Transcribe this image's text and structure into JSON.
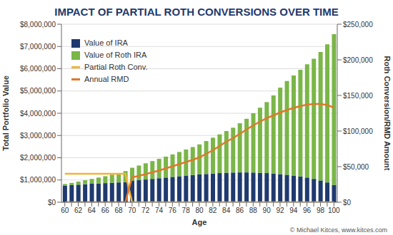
{
  "chart_data": {
    "type": "bar",
    "title": "IMPACT OF PARTIAL ROTH CONVERSIONS OVER TIME",
    "x_label": "Age",
    "y_label": "Total Portfolio Value",
    "y2_label": "Roth Conversion/RMD Amount",
    "annotations": [
      "© Michael Kitces, www.kitces.com"
    ],
    "stacked": true,
    "grid": true,
    "legend": "upper left",
    "categories": [
      "60",
      null,
      "62",
      null,
      "64",
      null,
      "66",
      null,
      "68",
      null,
      "70",
      null,
      "72",
      null,
      "74",
      null,
      "76",
      null,
      "78",
      null,
      "80",
      null,
      "82",
      null,
      "84",
      null,
      "86",
      null,
      "88",
      null,
      "90",
      null,
      "92",
      null,
      "94",
      null,
      "96",
      null,
      "98",
      null,
      "100"
    ],
    "ylim": [
      0,
      8000000
    ],
    "yticks": [
      {
        "value": 0,
        "label": "$0"
      },
      {
        "value": 1000000,
        "label": "$1,000,000"
      },
      {
        "value": 2000000,
        "label": "$2,000,000"
      },
      {
        "value": 3000000,
        "label": "$3,000,000"
      },
      {
        "value": 4000000,
        "label": "$4,000,000"
      },
      {
        "value": 5000000,
        "label": "$5,000,000"
      },
      {
        "value": 6000000,
        "label": "$6,000,000"
      },
      {
        "value": 7000000,
        "label": "$7,000,000"
      },
      {
        "value": 8000000,
        "label": "$8,000,000"
      }
    ],
    "y2lim": [
      0,
      250000
    ],
    "y2ticks": [
      {
        "value": 0,
        "label": "$0"
      },
      {
        "value": 50000,
        "label": "$50,000"
      },
      {
        "value": 100000,
        "label": "$100,000"
      },
      {
        "value": 150000,
        "label": "$150,000"
      },
      {
        "value": 200000,
        "label": "$200,000"
      },
      {
        "value": 250000,
        "label": "$250,000"
      }
    ],
    "series": [
      {
        "name": "Value of IRA",
        "type": "bar",
        "color": "#1f3a6e",
        "values": [
          750000,
          770000,
          790000,
          810000,
          830000,
          845000,
          860000,
          875000,
          890000,
          900000,
          960000,
          990000,
          1020000,
          1050000,
          1080000,
          1110000,
          1140000,
          1170000,
          1200000,
          1225000,
          1250000,
          1270000,
          1290000,
          1310000,
          1325000,
          1335000,
          1340000,
          1340000,
          1335000,
          1325000,
          1310000,
          1290000,
          1265000,
          1235000,
          1200000,
          1160000,
          1110000,
          1050000,
          980000,
          890000,
          780000
        ]
      },
      {
        "name": "Value of Roth IRA",
        "type": "bar",
        "color": "#7ab648",
        "values": [
          70000,
          100000,
          140000,
          180000,
          220000,
          265000,
          310000,
          365000,
          420000,
          500000,
          590000,
          660000,
          730000,
          800000,
          870000,
          940000,
          1010000,
          1090000,
          1170000,
          1255000,
          1350000,
          1480000,
          1610000,
          1740000,
          1875000,
          2015000,
          2210000,
          2410000,
          2665000,
          2925000,
          3190000,
          3510000,
          3885000,
          4215000,
          4500000,
          4790000,
          5090000,
          5400000,
          5770000,
          6210000,
          6770000
        ]
      },
      {
        "name": "Partial Roth Conv.",
        "type": "line",
        "axis": "y2",
        "color": "#f5b335",
        "values": [
          40000,
          40000,
          40000,
          40000,
          40000,
          40000,
          40000,
          40000,
          40000,
          40000,
          0,
          0,
          0,
          0,
          0,
          0,
          0,
          0,
          0,
          0,
          0,
          0,
          0,
          0,
          0,
          0,
          0,
          0,
          0,
          0,
          0,
          0,
          0,
          0,
          0,
          0,
          0,
          0,
          0,
          0,
          0
        ]
      },
      {
        "name": "Annual RMD",
        "type": "line",
        "axis": "y2",
        "color": "#e0782b",
        "values": [
          0,
          0,
          0,
          0,
          0,
          0,
          0,
          0,
          0,
          0,
          35000,
          37000,
          39500,
          42000,
          44500,
          47500,
          50500,
          53500,
          56500,
          59500,
          63000,
          68000,
          73000,
          79000,
          85000,
          90000,
          96000,
          102000,
          108000,
          113000,
          118000,
          122000,
          126000,
          129500,
          132500,
          135000,
          137000,
          138000,
          138000,
          136500,
          133000
        ]
      }
    ]
  }
}
